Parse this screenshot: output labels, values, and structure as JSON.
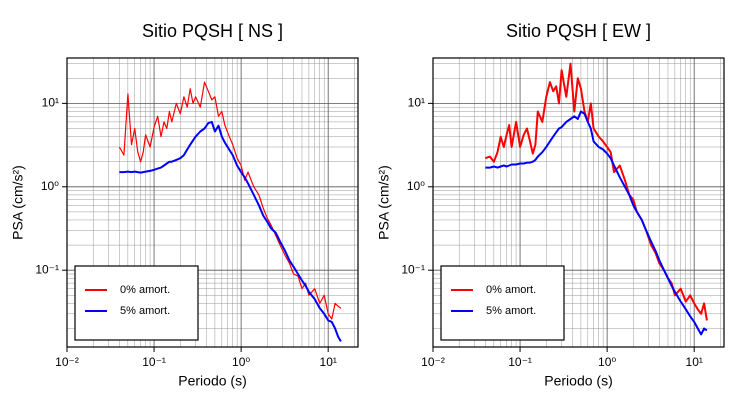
{
  "chart_data": [
    {
      "type": "line",
      "title": "Sitio PQSH [ NS ]",
      "x_label": "Periodo (s)",
      "y_label": "PSA (cm/s²)",
      "xscale": "log",
      "yscale": "log",
      "grid": true,
      "minor_grid": true,
      "legend": "lower left",
      "xlim": [
        0.01,
        22
      ],
      "ylim": [
        0.012,
        35
      ],
      "xticks": [
        {
          "value": 0.01,
          "label": "10⁻²"
        },
        {
          "value": 0.1,
          "label": "10⁻¹"
        },
        {
          "value": 1,
          "label": "10⁰"
        },
        {
          "value": 10,
          "label": "10¹"
        }
      ],
      "yticks": [
        {
          "value": 0.1,
          "label": "10⁻¹"
        },
        {
          "value": 1,
          "label": "10⁰"
        },
        {
          "value": 10,
          "label": "10¹"
        }
      ],
      "x": [
        0.04,
        0.045,
        0.05,
        0.055,
        0.06,
        0.065,
        0.07,
        0.075,
        0.08,
        0.09,
        0.1,
        0.11,
        0.12,
        0.13,
        0.14,
        0.15,
        0.16,
        0.18,
        0.2,
        0.22,
        0.24,
        0.26,
        0.28,
        0.3,
        0.34,
        0.38,
        0.42,
        0.46,
        0.5,
        0.55,
        0.6,
        0.65,
        0.7,
        0.8,
        0.9,
        1.0,
        1.1,
        1.2,
        1.4,
        1.6,
        1.8,
        2.0,
        2.2,
        2.5,
        2.8,
        3.2,
        3.6,
        4.0,
        4.5,
        5.0,
        5.5,
        6.0,
        7.0,
        8.0,
        9.0,
        10,
        11,
        12,
        13,
        14
      ],
      "series": [
        {
          "name": "0% amort.",
          "color": "#ff0000",
          "width": 1.2,
          "values": [
            3.0,
            2.4,
            13,
            3.2,
            5.0,
            2.6,
            2.0,
            2.6,
            4.2,
            3.0,
            5.2,
            7.0,
            4.0,
            6.0,
            5.0,
            8.0,
            6.0,
            10,
            7.5,
            12,
            9.0,
            15,
            10,
            12,
            9.0,
            18,
            14,
            11,
            12,
            7.0,
            8.0,
            5.5,
            4.5,
            3.2,
            2.2,
            1.8,
            1.2,
            1.5,
            1.0,
            0.8,
            0.55,
            0.42,
            0.35,
            0.26,
            0.2,
            0.15,
            0.12,
            0.09,
            0.085,
            0.06,
            0.07,
            0.05,
            0.06,
            0.04,
            0.05,
            0.03,
            0.026,
            0.04,
            0.037,
            0.035
          ]
        },
        {
          "name": "5% amort.",
          "color": "#0000ff",
          "width": 2,
          "values": [
            1.5,
            1.5,
            1.52,
            1.5,
            1.52,
            1.5,
            1.48,
            1.5,
            1.52,
            1.55,
            1.6,
            1.65,
            1.7,
            1.8,
            1.9,
            2.0,
            2.0,
            2.1,
            2.2,
            2.4,
            2.8,
            3.2,
            3.6,
            4.0,
            4.6,
            5.0,
            5.8,
            6.0,
            4.6,
            5.4,
            4.0,
            3.4,
            3.0,
            2.4,
            1.8,
            1.5,
            1.3,
            1.1,
            0.8,
            0.6,
            0.45,
            0.38,
            0.32,
            0.28,
            0.22,
            0.17,
            0.13,
            0.11,
            0.09,
            0.075,
            0.065,
            0.055,
            0.045,
            0.035,
            0.03,
            0.025,
            0.024,
            0.02,
            0.016,
            0.014
          ]
        }
      ]
    },
    {
      "type": "line",
      "title": "Sitio PQSH [ EW ]",
      "x_label": "Periodo (s)",
      "y_label": "PSA (cm/s²)",
      "xscale": "log",
      "yscale": "log",
      "grid": true,
      "minor_grid": true,
      "legend": "lower left",
      "xlim": [
        0.01,
        22
      ],
      "ylim": [
        0.012,
        35
      ],
      "xticks": [
        {
          "value": 0.01,
          "label": "10⁻²"
        },
        {
          "value": 0.1,
          "label": "10⁻¹"
        },
        {
          "value": 1,
          "label": "10⁰"
        },
        {
          "value": 10,
          "label": "10¹"
        }
      ],
      "yticks": [
        {
          "value": 0.1,
          "label": "10⁻¹"
        },
        {
          "value": 1,
          "label": "10⁰"
        },
        {
          "value": 10,
          "label": "10¹"
        }
      ],
      "x": [
        0.04,
        0.045,
        0.05,
        0.055,
        0.06,
        0.065,
        0.07,
        0.075,
        0.08,
        0.09,
        0.1,
        0.11,
        0.12,
        0.13,
        0.14,
        0.15,
        0.16,
        0.18,
        0.2,
        0.22,
        0.24,
        0.26,
        0.28,
        0.3,
        0.34,
        0.38,
        0.42,
        0.46,
        0.5,
        0.55,
        0.6,
        0.65,
        0.7,
        0.8,
        0.9,
        1.0,
        1.1,
        1.2,
        1.4,
        1.6,
        1.8,
        2.0,
        2.2,
        2.5,
        2.8,
        3.2,
        3.6,
        4.0,
        4.5,
        5.0,
        5.5,
        6.0,
        7.0,
        8.0,
        9.0,
        10,
        11,
        12,
        13,
        14
      ],
      "series": [
        {
          "name": "0% amort.",
          "color": "#ff0000",
          "width": 2,
          "values": [
            2.2,
            2.3,
            2.0,
            2.6,
            4.0,
            3.0,
            4.2,
            5.5,
            3.0,
            6.0,
            3.0,
            4.2,
            5.0,
            3.5,
            2.5,
            3.2,
            8.0,
            6.0,
            12,
            18,
            14,
            16,
            10,
            25,
            12,
            30,
            8.0,
            20,
            15,
            8.0,
            6.0,
            10,
            5.0,
            4.0,
            3.5,
            3.0,
            2.6,
            1.5,
            1.8,
            1.2,
            0.8,
            0.7,
            0.5,
            0.4,
            0.3,
            0.2,
            0.16,
            0.12,
            0.1,
            0.08,
            0.07,
            0.05,
            0.06,
            0.042,
            0.05,
            0.04,
            0.034,
            0.03,
            0.04,
            0.025
          ]
        },
        {
          "name": "5% amort.",
          "color": "#0000ff",
          "width": 2,
          "values": [
            1.7,
            1.7,
            1.75,
            1.7,
            1.75,
            1.8,
            1.75,
            1.8,
            1.85,
            1.85,
            1.9,
            1.9,
            1.95,
            1.95,
            2.0,
            2.1,
            2.3,
            2.6,
            3.0,
            3.5,
            4.0,
            4.5,
            5.0,
            5.2,
            6.0,
            6.5,
            7.0,
            6.5,
            8.0,
            7.5,
            6.0,
            5.0,
            3.5,
            3.0,
            2.8,
            2.5,
            2.2,
            1.8,
            1.3,
            1.0,
            0.8,
            0.6,
            0.5,
            0.4,
            0.3,
            0.22,
            0.17,
            0.13,
            0.1,
            0.08,
            0.065,
            0.055,
            0.042,
            0.034,
            0.028,
            0.024,
            0.02,
            0.017,
            0.02,
            0.019
          ]
        }
      ]
    }
  ]
}
